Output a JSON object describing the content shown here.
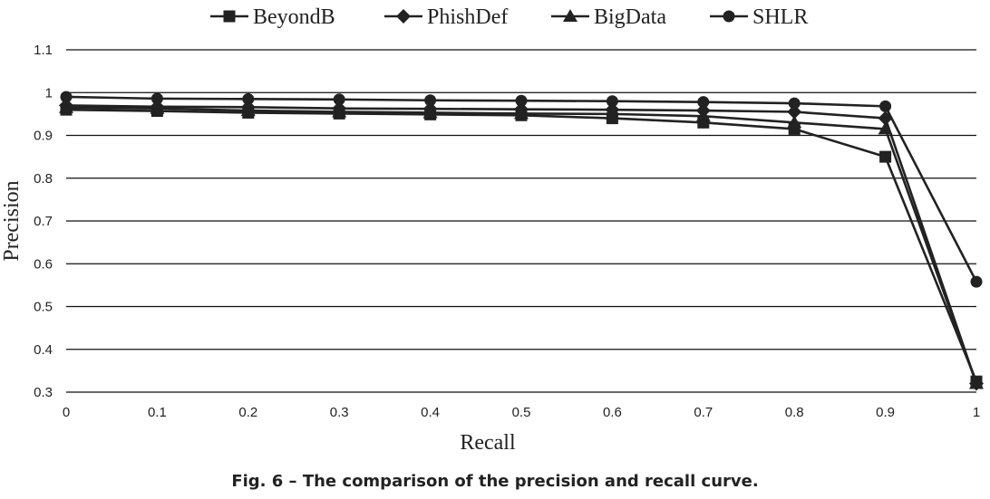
{
  "chart_data": {
    "type": "line",
    "x": [
      0,
      0.1,
      0.2,
      0.3,
      0.4,
      0.5,
      0.6,
      0.7,
      0.8,
      0.9,
      1
    ],
    "x_tick_labels": [
      "0",
      "0.1",
      "0.2",
      "0.3",
      "0.4",
      "0.5",
      "0.6",
      "0.7",
      "0.8",
      "0.9",
      "1"
    ],
    "y_tick_labels": [
      "0.3",
      "0.4",
      "0.5",
      "0.6",
      "0.7",
      "0.8",
      "0.9",
      "1",
      "1.1"
    ],
    "xlabel": "Recall",
    "ylabel": "Precision",
    "xlim": [
      0,
      1
    ],
    "ylim": [
      0.3,
      1.1
    ],
    "grid": "horizontal",
    "legend_position": "top",
    "series": [
      {
        "name": "BeyondB",
        "marker": "square",
        "color": "#222222",
        "values": [
          0.96,
          0.957,
          0.953,
          0.951,
          0.949,
          0.947,
          0.94,
          0.93,
          0.915,
          0.85,
          0.325
        ]
      },
      {
        "name": "PhishDef",
        "marker": "diamond",
        "color": "#222222",
        "values": [
          0.97,
          0.967,
          0.966,
          0.963,
          0.962,
          0.961,
          0.96,
          0.958,
          0.955,
          0.94,
          0.32
        ]
      },
      {
        "name": "BigData",
        "marker": "triangle",
        "color": "#222222",
        "values": [
          0.965,
          0.963,
          0.958,
          0.955,
          0.953,
          0.951,
          0.95,
          0.945,
          0.93,
          0.915,
          0.32
        ]
      },
      {
        "name": "SHLR",
        "marker": "circle",
        "color": "#222222",
        "values": [
          0.99,
          0.986,
          0.985,
          0.984,
          0.982,
          0.981,
          0.98,
          0.978,
          0.975,
          0.968,
          0.558
        ]
      }
    ]
  },
  "caption": "Fig. 6 – The comparison of the precision and recall curve."
}
